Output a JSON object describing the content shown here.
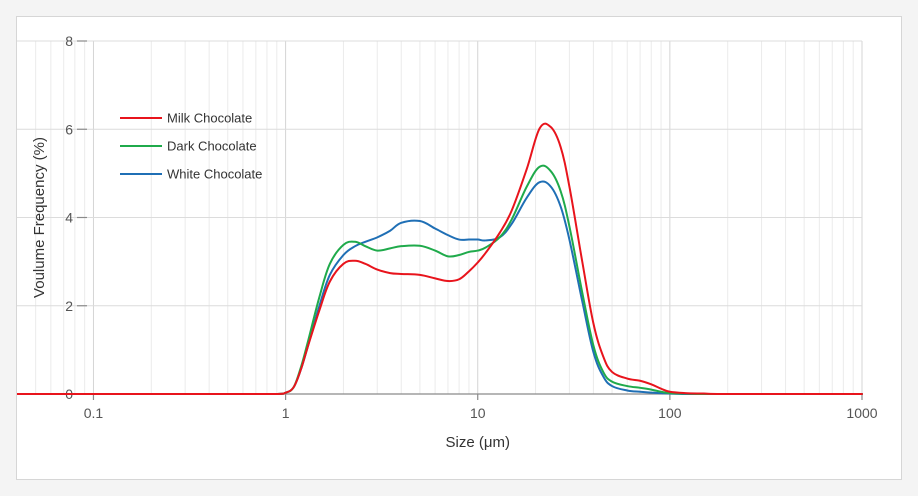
{
  "chart_data": {
    "type": "line",
    "title": "",
    "xlabel": "Size (μm)",
    "ylabel": "Voulume Frequency (%)",
    "x_scale": "log",
    "xlim": [
      0.04,
      1000
    ],
    "ylim": [
      0,
      8
    ],
    "x_ticks": [
      0.1,
      1,
      10,
      100,
      1000
    ],
    "x_tick_labels": [
      "0.1",
      "1",
      "10",
      "100",
      "1000"
    ],
    "y_ticks": [
      0,
      2,
      4,
      6,
      8
    ],
    "y_tick_labels": [
      "0",
      "2",
      "4",
      "6",
      "8"
    ],
    "grid": true,
    "legend_position": "top-left",
    "series": [
      {
        "name": "Milk Chocolate",
        "color": "#e8141c",
        "x": [
          0.04,
          0.9,
          1.0,
          1.1,
          1.2,
          1.3,
          1.5,
          1.7,
          2.0,
          2.3,
          2.6,
          3.0,
          3.5,
          4.0,
          5.0,
          6.0,
          7.0,
          8.0,
          9.0,
          10,
          11,
          13,
          15,
          18,
          21,
          24,
          27,
          30,
          35,
          40,
          45,
          50,
          60,
          70,
          80,
          90,
          100,
          120,
          150,
          200,
          1000
        ],
        "y": [
          0,
          0,
          0.03,
          0.15,
          0.55,
          1.05,
          1.9,
          2.55,
          2.95,
          3.02,
          2.95,
          2.82,
          2.74,
          2.72,
          2.7,
          2.62,
          2.56,
          2.6,
          2.78,
          2.98,
          3.2,
          3.65,
          4.15,
          5.1,
          6.02,
          6.05,
          5.6,
          4.7,
          3.0,
          1.6,
          0.85,
          0.5,
          0.35,
          0.3,
          0.22,
          0.12,
          0.05,
          0.02,
          0.01,
          0,
          0
        ]
      },
      {
        "name": "Dark Chocolate",
        "color": "#1faa4b",
        "x": [
          0.04,
          0.9,
          1.0,
          1.1,
          1.2,
          1.3,
          1.5,
          1.7,
          2.0,
          2.3,
          2.6,
          3.0,
          3.5,
          4.0,
          5.0,
          6.0,
          7.0,
          8.0,
          9.0,
          10,
          11,
          13,
          15,
          18,
          21,
          24,
          27,
          30,
          35,
          40,
          45,
          50,
          60,
          70,
          80,
          90,
          100,
          120,
          150,
          200,
          1000
        ],
        "y": [
          0,
          0,
          0.03,
          0.15,
          0.6,
          1.15,
          2.2,
          2.95,
          3.38,
          3.45,
          3.35,
          3.25,
          3.3,
          3.35,
          3.36,
          3.25,
          3.12,
          3.15,
          3.22,
          3.25,
          3.32,
          3.55,
          3.95,
          4.7,
          5.15,
          5.05,
          4.6,
          3.8,
          2.3,
          1.1,
          0.5,
          0.28,
          0.18,
          0.14,
          0.1,
          0.05,
          0.02,
          0.01,
          0,
          0,
          0
        ]
      },
      {
        "name": "White Chocolate",
        "color": "#1f6fb5",
        "x": [
          0.04,
          0.9,
          1.0,
          1.1,
          1.2,
          1.3,
          1.5,
          1.7,
          2.0,
          2.3,
          2.6,
          3.0,
          3.5,
          4.0,
          5.0,
          6.0,
          7.0,
          8.0,
          9.0,
          10,
          11,
          13,
          15,
          18,
          21,
          24,
          27,
          30,
          35,
          40,
          45,
          50,
          60,
          70,
          80,
          90,
          100,
          120,
          150,
          200,
          1000
        ],
        "y": [
          0,
          0,
          0.03,
          0.15,
          0.55,
          1.05,
          2.0,
          2.7,
          3.15,
          3.35,
          3.45,
          3.55,
          3.7,
          3.88,
          3.92,
          3.75,
          3.6,
          3.5,
          3.5,
          3.5,
          3.48,
          3.55,
          3.85,
          4.45,
          4.8,
          4.7,
          4.25,
          3.5,
          2.1,
          0.95,
          0.4,
          0.18,
          0.08,
          0.05,
          0.03,
          0.02,
          0.01,
          0,
          0,
          0,
          0
        ]
      }
    ]
  }
}
